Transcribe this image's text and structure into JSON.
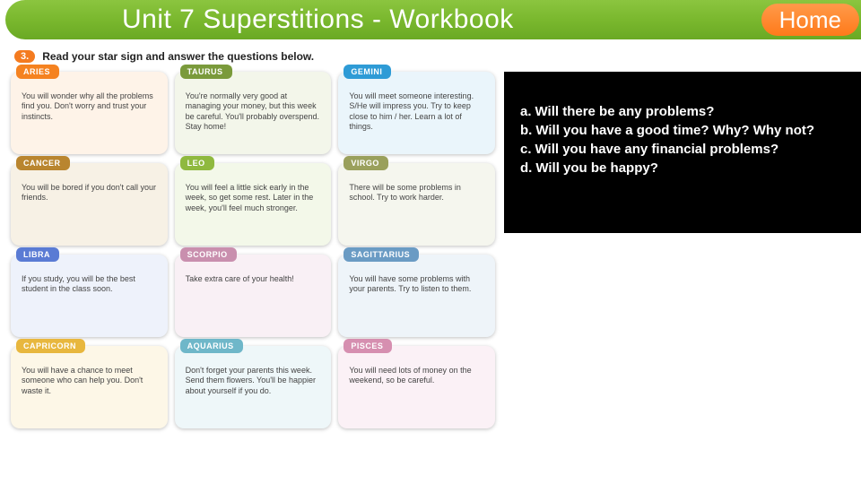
{
  "header": {
    "title": "Unit 7 Superstitions - Workbook",
    "home_label": "Home"
  },
  "instruction": {
    "number": "3.",
    "text": "Read your star sign and answer the questions below."
  },
  "cards": [
    {
      "sign": "ARIES",
      "tag_bg": "#f58220",
      "tint": "#fef3e8",
      "body": "You will wonder why all the problems find you. Don't worry and trust your instincts."
    },
    {
      "sign": "TAURUS",
      "tag_bg": "#7a9a3b",
      "tint": "#f3f6ea",
      "body": "You're normally very good at managing your money, but this week be careful. You'll probably overspend. Stay home!"
    },
    {
      "sign": "GEMINI",
      "tag_bg": "#2e9bd6",
      "tint": "#eaf5fb",
      "body": "You will meet someone interesting. S/He will impress you. Try to keep close to him / her. Learn a lot of things."
    },
    {
      "sign": "CANCER",
      "tag_bg": "#b9852f",
      "tint": "#f7f1e5",
      "body": "You will be bored if you don't call your friends."
    },
    {
      "sign": "LEO",
      "tag_bg": "#8fb93f",
      "tint": "#f3f8e9",
      "body": "You will feel a little sick early in the week, so get some rest. Later in the week, you'll feel much stronger."
    },
    {
      "sign": "VIRGO",
      "tag_bg": "#9aa05c",
      "tint": "#f5f6ee",
      "body": "There will be some problems in school. Try to work harder."
    },
    {
      "sign": "LIBRA",
      "tag_bg": "#5a7bd4",
      "tint": "#eef2fb",
      "body": "If you study, you will be the best student in the class soon."
    },
    {
      "sign": "SCORPIO",
      "tag_bg": "#c98fae",
      "tint": "#f9f0f5",
      "body": "Take extra care of your health!"
    },
    {
      "sign": "SAGITTARIUS",
      "tag_bg": "#6a9bc4",
      "tint": "#eef4f9",
      "body": "You will have some problems with your parents. Try to listen to them."
    },
    {
      "sign": "CAPRICORN",
      "tag_bg": "#e8b73e",
      "tint": "#fdf7e7",
      "body": "You will have a chance to meet someone who can help you. Don't waste it."
    },
    {
      "sign": "AQUARIUS",
      "tag_bg": "#6fb7c9",
      "tint": "#eef7f9",
      "body": "Don't forget your parents this week. Send them flowers. You'll be happier about yourself if you do."
    },
    {
      "sign": "PISCES",
      "tag_bg": "#d68fb0",
      "tint": "#fbf1f6",
      "body": "You will need lots of money on the weekend, so be careful."
    }
  ],
  "questions": [
    {
      "label": "a.",
      "text": "Will there be any problems?"
    },
    {
      "label": "b.",
      "text": "Will you have a good time? Why? Why not?"
    },
    {
      "label": "c.",
      "text": "Will you have any financial problems?"
    },
    {
      "label": "d.",
      "text": "Will you be happy?"
    }
  ]
}
